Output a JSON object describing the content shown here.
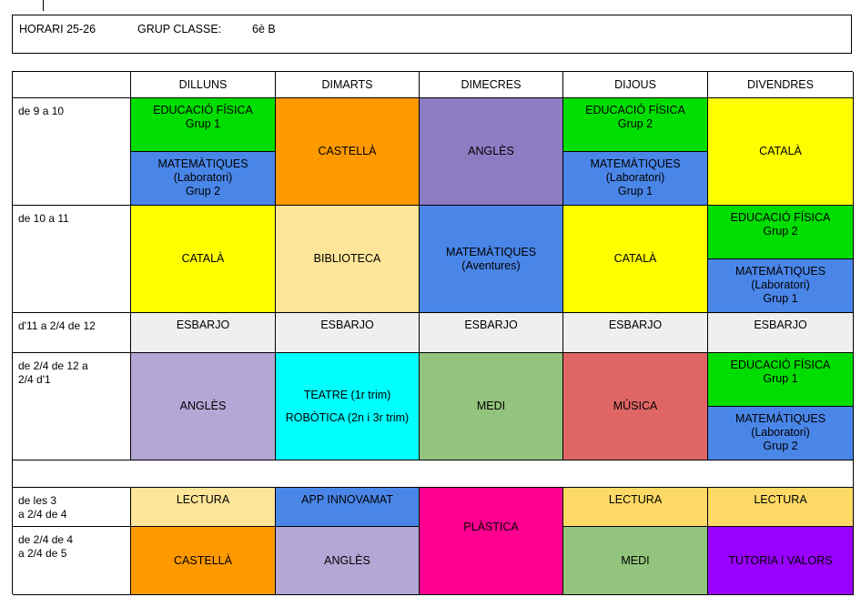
{
  "header": {
    "title": "HORARI 25-26",
    "group_label": "GRUP CLASSE:",
    "group_value": "6è B"
  },
  "days": [
    "DILLUNS",
    "DIMARTS",
    "DIMECRES",
    "DIJOUS",
    "DIVENDRES"
  ],
  "times": [
    "de 9 a 10",
    "de 10 a 11",
    "d'11 a 2/4 de 12",
    "de 2/4 de 12 a\n2/4 d'1",
    "de les 3\na 2/4 de 4",
    "de 2/4 de 4\na 2/4 de 5"
  ],
  "cells": {
    "ef": "EDUCACIÓ FÍSICA",
    "grup1": "Grup 1",
    "grup2": "Grup 2",
    "mat": "MATEMÀTIQUES",
    "lab": "(Laboratori)",
    "aventures": "(Aventures)",
    "castella": "CASTELLÀ",
    "angles": "ANGLÈS",
    "catala": "CATALÀ",
    "biblioteca": "BIBLIOTECA",
    "esbarjo": "ESBARJO",
    "teatre": "TEATRE (1r trim)",
    "robotica": "ROBÒTICA (2n i 3r trim)",
    "medi": "MEDI",
    "musica": "MÚSICA",
    "lectura": "LECTURA",
    "app": "APP INNOVAMAT",
    "plastica": "PLÀSTICA",
    "tutoria": "TUTORIA I VALORS"
  },
  "colors": {
    "green": "#00dd00",
    "blue": "#4a86e8",
    "orange": "#ff9900",
    "purple": "#8e7cc3",
    "yellow": "#ffff00",
    "tan": "#ffe599",
    "grey": "#efefef",
    "lavender": "#b4a7d6",
    "cyan": "#00ffff",
    "sage": "#93c47d",
    "red": "#e06666",
    "gold": "#ffd966",
    "magenta": "#ff0090",
    "violet": "#9900ff"
  }
}
